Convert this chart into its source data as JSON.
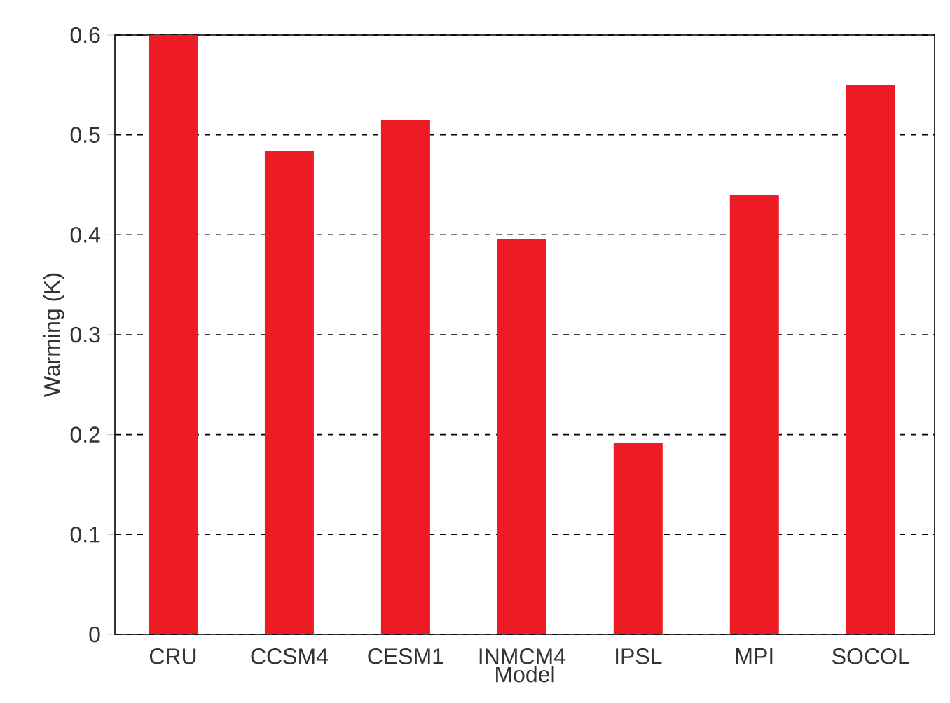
{
  "chart_data": {
    "type": "bar",
    "xlabel": "Model",
    "ylabel": "Warming (K)",
    "categories": [
      "CRU",
      "CCSM4",
      "CESM1",
      "INMCM4",
      "IPSL",
      "MPI",
      "SOCOL"
    ],
    "values": [
      0.6,
      0.484,
      0.515,
      0.396,
      0.192,
      0.44,
      0.55
    ],
    "color": "#ed1c24",
    "ylim": [
      0,
      0.6
    ],
    "yticks": [
      0,
      0.1,
      0.2,
      0.3,
      0.4,
      0.5,
      0.6
    ],
    "grid": "y"
  }
}
